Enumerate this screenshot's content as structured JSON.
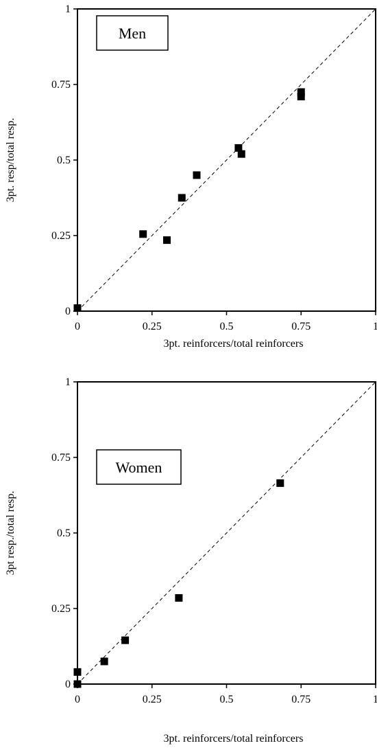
{
  "chart_data": [
    {
      "type": "scatter",
      "panel_label": "Men",
      "xlabel": "3pt. reinforcers/total reinforcers",
      "ylabel": "3pt. resp/total resp.",
      "xlim": [
        0,
        1
      ],
      "ylim": [
        0,
        1
      ],
      "x_ticks": [
        "0",
        "0.25",
        "0.5",
        "0.75",
        "1"
      ],
      "y_ticks": [
        "0",
        "0.25",
        "0.5",
        "0.75",
        "1"
      ],
      "reference_line": "y = x (dashed)",
      "grid": false,
      "points": [
        {
          "x": 0.0,
          "y": 0.01
        },
        {
          "x": 0.22,
          "y": 0.255
        },
        {
          "x": 0.3,
          "y": 0.235
        },
        {
          "x": 0.35,
          "y": 0.375
        },
        {
          "x": 0.4,
          "y": 0.45
        },
        {
          "x": 0.54,
          "y": 0.54
        },
        {
          "x": 0.55,
          "y": 0.52
        },
        {
          "x": 0.75,
          "y": 0.725
        },
        {
          "x": 0.75,
          "y": 0.71
        }
      ]
    },
    {
      "type": "scatter",
      "panel_label": "Women",
      "xlabel": "3pt. reinforcers/total reinforcers",
      "ylabel": "3pt resp./total resp.",
      "xlim": [
        0,
        1
      ],
      "ylim": [
        0,
        1
      ],
      "x_ticks": [
        "0",
        "0.25",
        "0.5",
        "0.75",
        "1"
      ],
      "y_ticks": [
        "0",
        "0.25",
        "0.5",
        "0.75",
        "1"
      ],
      "reference_line": "y = x (dashed)",
      "grid": false,
      "points": [
        {
          "x": 0.0,
          "y": 0.0
        },
        {
          "x": 0.0,
          "y": 0.04
        },
        {
          "x": 0.09,
          "y": 0.075
        },
        {
          "x": 0.16,
          "y": 0.145
        },
        {
          "x": 0.34,
          "y": 0.285
        },
        {
          "x": 0.68,
          "y": 0.665
        }
      ]
    }
  ],
  "colors": {
    "marker": "#000000",
    "axis": "#000000",
    "background": "#ffffff"
  }
}
